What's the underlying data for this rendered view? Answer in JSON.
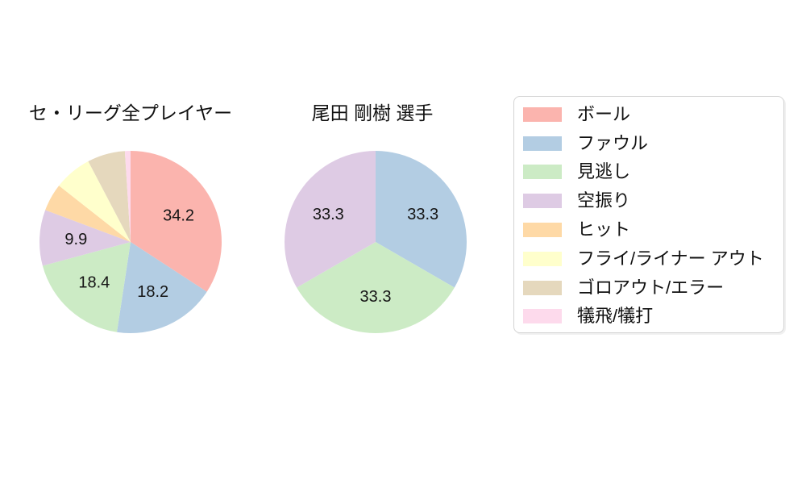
{
  "chart_data": [
    {
      "type": "pie",
      "title": "セ・リーグ全プレイヤー",
      "start_angle": "top",
      "direction": "clockwise",
      "legend_position": "right",
      "slices": [
        {
          "label": "ボール",
          "value": 34.2,
          "display": "34.2",
          "color": "#fbb4ae"
        },
        {
          "label": "ファウル",
          "value": 18.2,
          "display": "18.2",
          "color": "#b3cde3"
        },
        {
          "label": "見逃し",
          "value": 18.4,
          "display": "18.4",
          "color": "#ccebc5"
        },
        {
          "label": "空振り",
          "value": 9.9,
          "display": "9.9",
          "color": "#decbe4"
        },
        {
          "label": "ヒット",
          "value": 4.9,
          "display": "",
          "color": "#fed9a6"
        },
        {
          "label": "フライ/ライナー アウト",
          "value": 6.7,
          "display": "",
          "color": "#ffffcc"
        },
        {
          "label": "ゴロアウト/エラー",
          "value": 6.7,
          "display": "",
          "color": "#e5d8bd"
        },
        {
          "label": "犠飛/犠打",
          "value": 1.0,
          "display": "",
          "color": "#fddaec"
        }
      ]
    },
    {
      "type": "pie",
      "title": "尾田 剛樹 選手",
      "start_angle": "top",
      "direction": "clockwise",
      "legend_position": "right",
      "slices": [
        {
          "label": "ファウル",
          "value": 33.3,
          "display": "33.3",
          "color": "#b3cde3"
        },
        {
          "label": "見逃し",
          "value": 33.3,
          "display": "33.3",
          "color": "#ccebc5"
        },
        {
          "label": "空振り",
          "value": 33.3,
          "display": "33.3",
          "color": "#decbe4"
        }
      ]
    }
  ],
  "legend": {
    "items": [
      {
        "label": "ボール",
        "color": "#fbb4ae"
      },
      {
        "label": "ファウル",
        "color": "#b3cde3"
      },
      {
        "label": "見逃し",
        "color": "#ccebc5"
      },
      {
        "label": "空振り",
        "color": "#decbe4"
      },
      {
        "label": "ヒット",
        "color": "#fed9a6"
      },
      {
        "label": "フライ/ライナー アウト",
        "color": "#ffffcc"
      },
      {
        "label": "ゴロアウト/エラー",
        "color": "#e5d8bd"
      },
      {
        "label": "犠飛/犠打",
        "color": "#fddaec"
      }
    ]
  }
}
